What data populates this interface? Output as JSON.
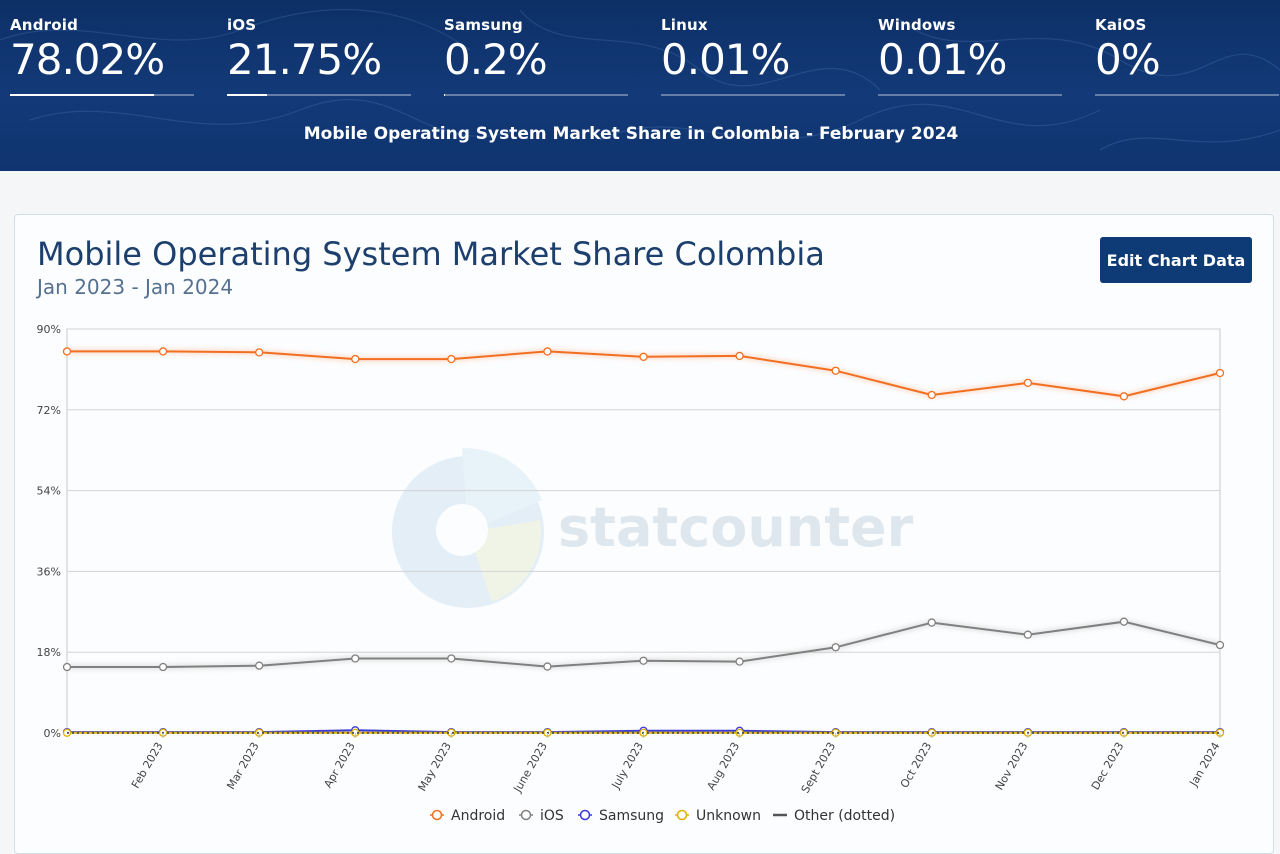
{
  "header": {
    "stats": [
      {
        "label": "Android",
        "value": "78.02%",
        "share": 0.7802
      },
      {
        "label": "iOS",
        "value": "21.75%",
        "share": 0.2175
      },
      {
        "label": "Samsung",
        "value": "0.2%",
        "share": 0.002
      },
      {
        "label": "Linux",
        "value": "0.01%",
        "share": 0.0001
      },
      {
        "label": "Windows",
        "value": "0.01%",
        "share": 0.0001
      },
      {
        "label": "KaiOS",
        "value": "0%",
        "share": 0
      }
    ],
    "title": "Mobile Operating System Market Share in Colombia - February 2024"
  },
  "card": {
    "title": "Mobile Operating System Market Share Colombia",
    "subtitle": "Jan 2023 - Jan 2024",
    "edit_button_label": "Edit Chart Data",
    "watermark": "statcounter"
  },
  "colors": {
    "android": "#f26f21",
    "ios": "#808080",
    "samsung": "#3a3ad6",
    "unknown": "#e0b000",
    "other": "#555555",
    "header_bg": "#0d2f66",
    "button_bg": "#0e3a75"
  },
  "chart_data": {
    "type": "line",
    "categories": [
      "Jan 2023",
      "Feb 2023",
      "Mar 2023",
      "Apr 2023",
      "May 2023",
      "June 2023",
      "July 2023",
      "Aug 2023",
      "Sept 2023",
      "Oct 2023",
      "Nov 2023",
      "Dec 2023",
      "Jan 2024"
    ],
    "x_tick_labels": [
      "Feb 2023",
      "Mar 2023",
      "Apr 2023",
      "May 2023",
      "June 2023",
      "July 2023",
      "Aug 2023",
      "Sept 2023",
      "Oct 2023",
      "Nov 2023",
      "Dec 2023",
      "Jan 2024"
    ],
    "y_ticks": [
      "0%",
      "18%",
      "36%",
      "54%",
      "72%",
      "90%"
    ],
    "ylim": [
      0,
      90
    ],
    "grid": true,
    "legend_position": "bottom",
    "series": [
      {
        "name": "Android",
        "color": "#f26f21",
        "marker": true,
        "values": [
          85.0,
          85.0,
          84.8,
          83.3,
          83.3,
          85.0,
          83.8,
          84.0,
          80.7,
          75.3,
          78.0,
          75.0,
          80.2
        ]
      },
      {
        "name": "iOS",
        "color": "#808080",
        "marker": true,
        "values": [
          14.7,
          14.7,
          15.0,
          16.6,
          16.6,
          14.8,
          16.1,
          15.9,
          19.1,
          24.6,
          21.9,
          24.8,
          19.6
        ]
      },
      {
        "name": "Samsung",
        "color": "#3a3ad6",
        "marker": true,
        "values": [
          0.2,
          0.2,
          0.2,
          0.6,
          0.2,
          0.2,
          0.5,
          0.5,
          0.2,
          0.2,
          0.2,
          0.2,
          0.2
        ]
      },
      {
        "name": "Unknown",
        "color": "#e0b000",
        "marker": true,
        "values": [
          0.05,
          0.05,
          0.05,
          0.05,
          0.05,
          0.05,
          0.05,
          0.05,
          0.05,
          0.05,
          0.05,
          0.05,
          0.05
        ]
      },
      {
        "name": "Other (dotted)",
        "color": "#555555",
        "marker": false,
        "dotted": true,
        "values": [
          0.02,
          0.02,
          0.02,
          0.02,
          0.02,
          0.02,
          0.02,
          0.02,
          0.02,
          0.02,
          0.02,
          0.02,
          0.02
        ]
      }
    ]
  }
}
